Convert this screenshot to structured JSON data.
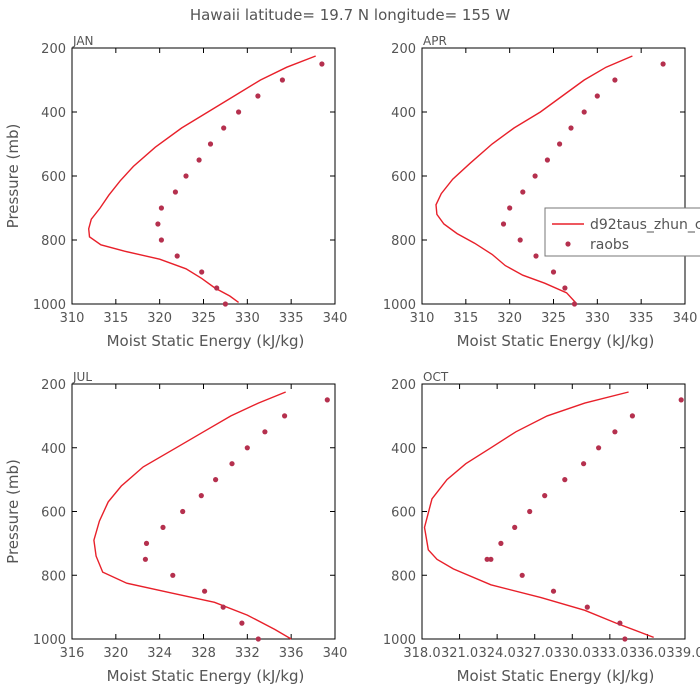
{
  "figure_title": "Hawaii  latitude= 19.7 N longitude= 155 W",
  "colors": {
    "model": "#e8202a",
    "obs": "#b5304e",
    "axis": "#000000",
    "text": "#555555"
  },
  "legend": {
    "model_label": "d92taus_zhun_c",
    "obs_label": "raobs",
    "placement": "right of APR panel"
  },
  "chart_data": [
    {
      "type": "line",
      "panel": "JAN",
      "title": "JAN",
      "xlabel": "Moist Static Energy (kJ/kg)",
      "ylabel": "Pressure (mb)",
      "xlim": [
        310,
        340
      ],
      "ylim": [
        1000,
        200
      ],
      "xticks": [
        310,
        315,
        320,
        325,
        330,
        335,
        340
      ],
      "xtick_labels": [
        "310",
        "315",
        "320",
        "325",
        "330",
        "335",
        "340"
      ],
      "yticks": [
        200,
        400,
        600,
        800,
        1000
      ],
      "ytick_labels": [
        "200",
        "400",
        "600",
        "800",
        "1000"
      ],
      "series": [
        {
          "name": "d92taus_zhun_c",
          "style": "line",
          "x": [
            337.8,
            334.5,
            331.5,
            328.5,
            325.5,
            322.5,
            319.5,
            317.0,
            315.5,
            314.2,
            313.2,
            312.2,
            311.9,
            312.0,
            313.3,
            316.0,
            320.0,
            323.0,
            324.8,
            326.3,
            328.0,
            329.0
          ],
          "y": [
            225,
            260,
            300,
            350,
            400,
            450,
            510,
            570,
            615,
            660,
            700,
            735,
            765,
            790,
            815,
            835,
            860,
            890,
            920,
            950,
            975,
            995
          ]
        },
        {
          "name": "raobs",
          "style": "markers",
          "x": [
            338.5,
            334.0,
            331.2,
            329.0,
            327.3,
            325.8,
            324.5,
            323.0,
            321.8,
            320.2,
            319.8,
            320.2,
            322.0,
            324.8,
            326.5,
            327.5
          ],
          "y": [
            250,
            300,
            350,
            400,
            450,
            500,
            550,
            600,
            650,
            700,
            750,
            800,
            850,
            900,
            950,
            1000
          ]
        }
      ]
    },
    {
      "type": "line",
      "panel": "APR",
      "title": "APR",
      "xlabel": "Moist Static Energy (kJ/kg)",
      "ylabel": "",
      "xlim": [
        310,
        340
      ],
      "ylim": [
        1000,
        200
      ],
      "xticks": [
        310,
        315,
        320,
        325,
        330,
        335,
        340
      ],
      "xtick_labels": [
        "310",
        "315",
        "320",
        "325",
        "330",
        "335",
        "340"
      ],
      "yticks": [
        200,
        400,
        600,
        800,
        1000
      ],
      "ytick_labels": [
        "200",
        "400",
        "600",
        "800",
        "1000"
      ],
      "series": [
        {
          "name": "d92taus_zhun_c",
          "style": "line",
          "x": [
            334.0,
            331.0,
            328.5,
            326.0,
            323.5,
            320.5,
            318.0,
            315.5,
            313.5,
            312.2,
            311.6,
            311.7,
            312.5,
            314.0,
            316.0,
            318.0,
            319.5,
            321.5,
            324.0,
            326.5,
            327.5
          ],
          "y": [
            225,
            260,
            300,
            350,
            400,
            450,
            500,
            560,
            610,
            655,
            690,
            720,
            750,
            780,
            810,
            845,
            880,
            910,
            935,
            965,
            995
          ]
        },
        {
          "name": "raobs",
          "style": "markers",
          "x": [
            337.5,
            332.0,
            330.0,
            328.5,
            327.0,
            325.7,
            324.3,
            322.9,
            321.5,
            320.0,
            319.3,
            321.2,
            323.0,
            325.0,
            326.3,
            327.4
          ],
          "y": [
            250,
            300,
            350,
            400,
            450,
            500,
            550,
            600,
            650,
            700,
            750,
            800,
            850,
            900,
            950,
            1000
          ]
        }
      ]
    },
    {
      "type": "line",
      "panel": "JUL",
      "title": "JUL",
      "xlabel": "Moist Static Energy (kJ/kg)",
      "ylabel": "Pressure (mb)",
      "xlim": [
        316,
        340
      ],
      "ylim": [
        1000,
        200
      ],
      "xticks": [
        316,
        320,
        324,
        328,
        332,
        336,
        340
      ],
      "xtick_labels": [
        "316",
        "320",
        "324",
        "328",
        "332",
        "336",
        "340"
      ],
      "yticks": [
        200,
        400,
        600,
        800,
        1000
      ],
      "ytick_labels": [
        "200",
        "400",
        "600",
        "800",
        "1000"
      ],
      "series": [
        {
          "name": "d92taus_zhun_c",
          "style": "line",
          "x": [
            335.5,
            333.0,
            330.5,
            328.0,
            325.5,
            322.5,
            320.5,
            319.3,
            318.5,
            318.0,
            318.2,
            318.8,
            321.0,
            325.0,
            329.0,
            332.0,
            334.5,
            336.0
          ],
          "y": [
            225,
            260,
            300,
            350,
            400,
            460,
            520,
            570,
            630,
            690,
            740,
            790,
            825,
            855,
            885,
            925,
            970,
            1000
          ]
        },
        {
          "name": "raobs",
          "style": "markers",
          "x": [
            339.3,
            335.4,
            333.6,
            332.0,
            330.6,
            329.1,
            327.8,
            326.1,
            324.3,
            322.8,
            322.7,
            325.2,
            328.1,
            329.8,
            331.5,
            333.0
          ],
          "y": [
            250,
            300,
            350,
            400,
            450,
            500,
            550,
            600,
            650,
            700,
            750,
            800,
            850,
            900,
            950,
            1000
          ]
        }
      ]
    },
    {
      "type": "line",
      "panel": "OCT",
      "title": "OCT",
      "xlabel": "Moist Static Energy (kJ/kg)",
      "ylabel": "",
      "xlim": [
        318.0,
        339.0
      ],
      "ylim": [
        1000,
        200
      ],
      "xticks": [
        318.0,
        321.0,
        324.0,
        327.0,
        330.0,
        333.0,
        336.0,
        339.0
      ],
      "xtick_labels": [
        "318.0",
        "321.0",
        "324.0",
        "327.0",
        "330.0",
        "333.0",
        "336.0",
        "339.0"
      ],
      "yticks": [
        200,
        400,
        600,
        800,
        1000
      ],
      "ytick_labels": [
        "200",
        "400",
        "600",
        "800",
        "1000"
      ],
      "series": [
        {
          "name": "d92taus_zhun_c",
          "style": "line",
          "x": [
            334.5,
            331.0,
            328.0,
            325.5,
            323.5,
            321.5,
            320.0,
            318.8,
            318.2,
            318.5,
            319.2,
            320.5,
            323.5,
            327.5,
            331.0,
            333.5,
            335.5,
            336.5
          ],
          "y": [
            225,
            260,
            300,
            350,
            400,
            450,
            500,
            560,
            650,
            720,
            750,
            780,
            830,
            870,
            910,
            950,
            980,
            995
          ]
        },
        {
          "name": "raobs",
          "style": "markers",
          "x": [
            338.7,
            334.8,
            333.4,
            332.1,
            330.9,
            329.4,
            327.8,
            326.6,
            325.4,
            324.3,
            323.2,
            323.5,
            326.0,
            328.5,
            331.2,
            333.8,
            334.2
          ],
          "y": [
            250,
            300,
            350,
            400,
            450,
            500,
            550,
            600,
            650,
            700,
            750,
            750,
            800,
            850,
            900,
            950,
            1000
          ]
        }
      ]
    }
  ]
}
